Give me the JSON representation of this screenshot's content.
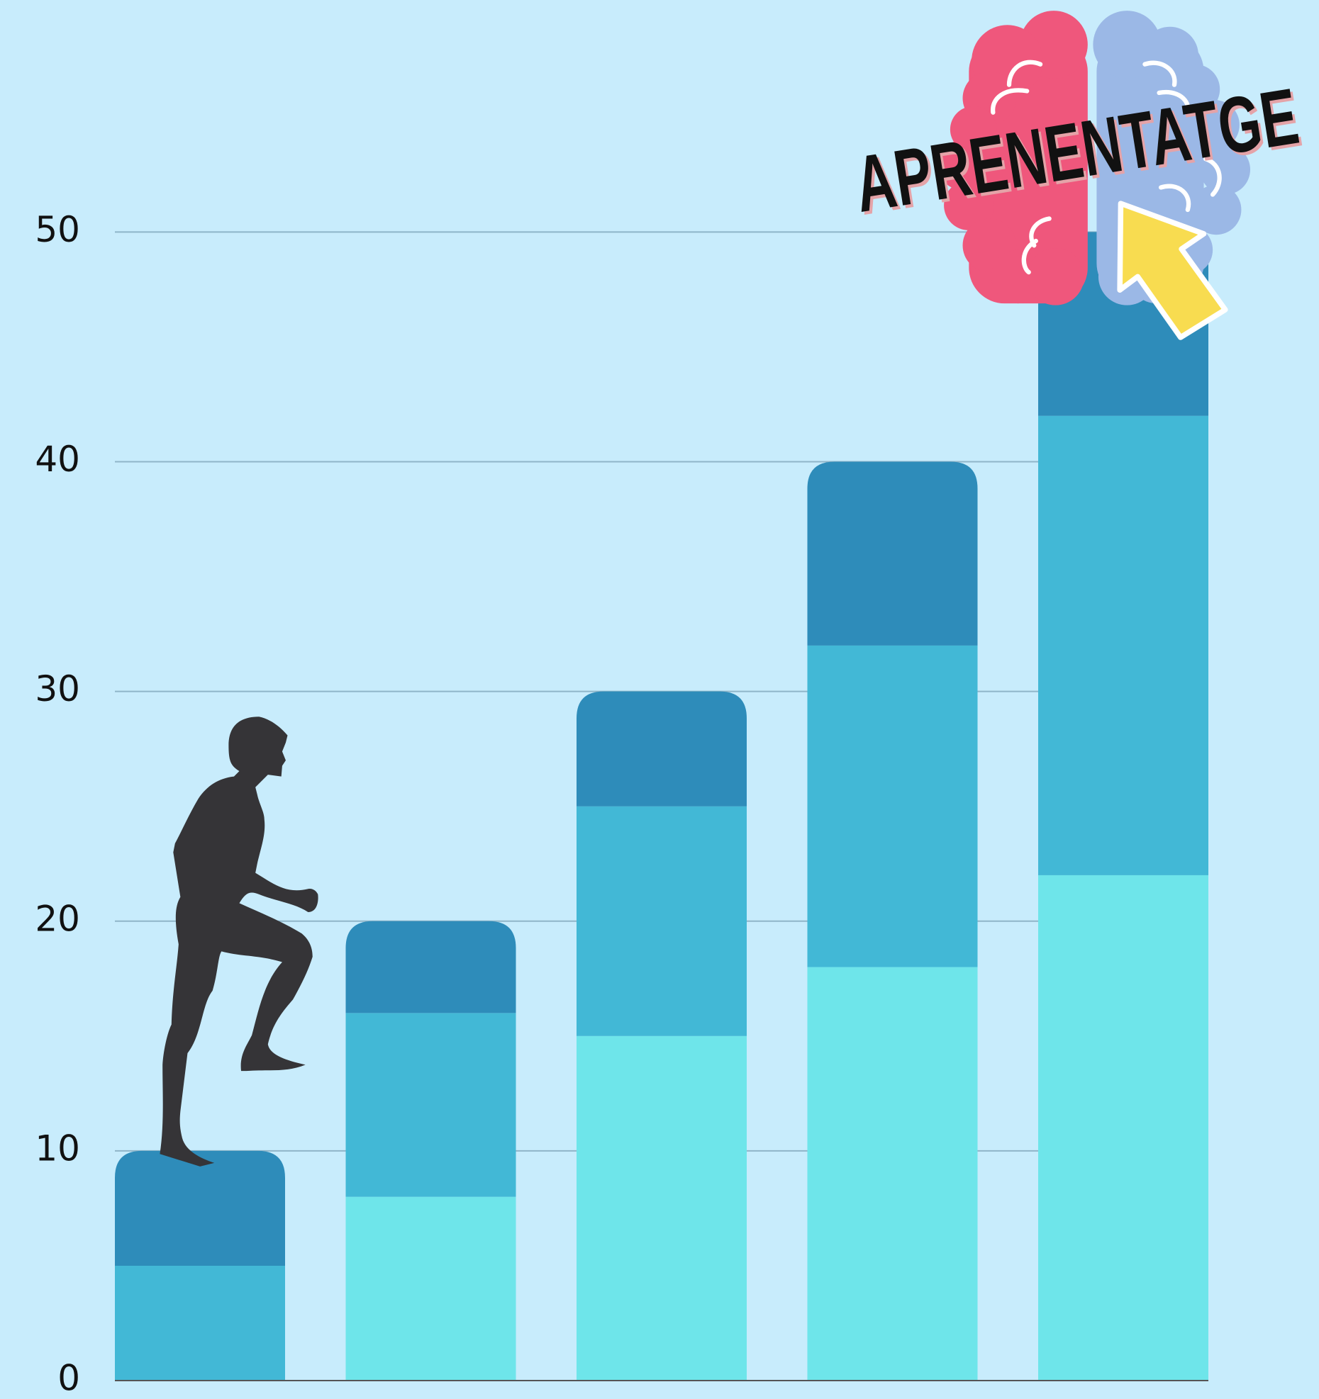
{
  "chart_data": {
    "type": "stacked_bar",
    "categories": [
      null,
      null,
      null,
      null,
      null
    ],
    "series": [
      {
        "color": "#6ee5ea",
        "values": [
          0,
          8,
          15,
          18,
          22
        ]
      },
      {
        "color": "#42b8d6",
        "values": [
          5,
          8,
          10,
          14,
          20
        ]
      },
      {
        "color": "#2e8cba",
        "values": [
          5,
          4,
          5,
          8,
          8
        ]
      }
    ],
    "ylim": [
      0,
      50
    ],
    "yticks": [
      0,
      10,
      20,
      30,
      40,
      50
    ],
    "grid": true,
    "annotation": "APRENENTATGE"
  }
}
